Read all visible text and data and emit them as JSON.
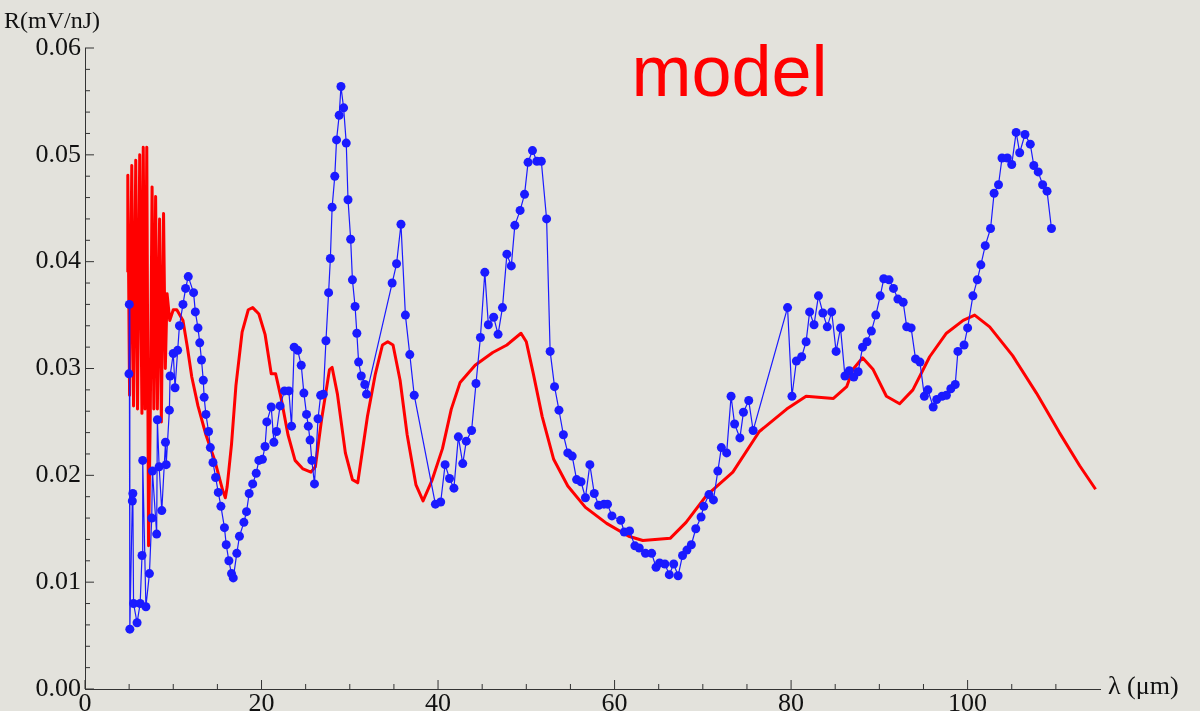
{
  "chart_data": {
    "type": "line",
    "xlabel": "λ (μm)",
    "ylabel": "R(mV/nJ)",
    "xlim": [
      0,
      115
    ],
    "ylim": [
      0,
      0.06
    ],
    "xticks": [
      0,
      {
        "value": 5,
        "label": null
      },
      {
        "value": 10,
        "label": null
      },
      {
        "value": 15,
        "label": null
      },
      20,
      {
        "value": 25,
        "label": null
      },
      {
        "value": 30,
        "label": null
      },
      {
        "value": 35,
        "label": null
      },
      40,
      {
        "value": 45,
        "label": null
      },
      {
        "value": 50,
        "label": null
      },
      {
        "value": 55,
        "label": null
      },
      60,
      {
        "value": 65,
        "label": null
      },
      {
        "value": 70,
        "label": null
      },
      {
        "value": 75,
        "label": null
      },
      80,
      {
        "value": 85,
        "label": null
      },
      {
        "value": 90,
        "label": null
      },
      {
        "value": 95,
        "label": null
      },
      100,
      {
        "value": 105,
        "label": null
      },
      {
        "value": 110,
        "label": null
      }
    ],
    "yticks": [
      {
        "value": 0,
        "label": "0.00"
      },
      {
        "value": 0.002,
        "label": null
      },
      {
        "value": 0.004,
        "label": null
      },
      {
        "value": 0.006,
        "label": null
      },
      {
        "value": 0.008,
        "label": null
      },
      0.01,
      {
        "value": 0.012,
        "label": null
      },
      {
        "value": 0.014,
        "label": null
      },
      {
        "value": 0.016,
        "label": null
      },
      {
        "value": 0.018,
        "label": null
      },
      0.02,
      {
        "value": 0.022,
        "label": null
      },
      {
        "value": 0.024,
        "label": null
      },
      {
        "value": 0.026,
        "label": null
      },
      {
        "value": 0.028,
        "label": null
      },
      0.03,
      {
        "value": 0.032,
        "label": null
      },
      {
        "value": 0.034,
        "label": null
      },
      {
        "value": 0.036,
        "label": null
      },
      {
        "value": 0.038,
        "label": null
      },
      0.04,
      {
        "value": 0.042,
        "label": null
      },
      {
        "value": 0.044,
        "label": null
      },
      {
        "value": 0.046,
        "label": null
      },
      {
        "value": 0.048,
        "label": null
      },
      0.05,
      {
        "value": 0.052,
        "label": null
      },
      {
        "value": 0.054,
        "label": null
      },
      {
        "value": 0.056,
        "label": null
      },
      {
        "value": 0.058,
        "label": null
      },
      0.06
    ],
    "grid": false,
    "legend": false,
    "series": [
      {
        "color": "#1a1aff",
        "marker": "circle",
        "line_style": "solid",
        "x": [
          4.98,
          5.02,
          5.08,
          5.36,
          5.42,
          5.5,
          5.9,
          6.25,
          6.46,
          6.54,
          6.9,
          7.3,
          7.56,
          7.64,
          8.12,
          8.2,
          8.4,
          8.7,
          9.12,
          9.2,
          9.56,
          9.64,
          10.0,
          10.2,
          10.5,
          10.7,
          11.1,
          11.4,
          11.7,
          12.3,
          12.5,
          12.8,
          13.0,
          13.2,
          13.4,
          13.5,
          13.7,
          14.0,
          14.2,
          14.5,
          14.8,
          15.1,
          15.4,
          15.8,
          16.0,
          16.3,
          16.6,
          16.8,
          17.2,
          17.5,
          18.0,
          18.3,
          18.6,
          19.0,
          19.4,
          19.7,
          20.1,
          20.4,
          20.6,
          21.1,
          21.4,
          21.7,
          22.1,
          22.6,
          23.1,
          23.4,
          23.7,
          24.1,
          24.5,
          24.8,
          25.1,
          25.3,
          25.5,
          25.7,
          26.0,
          26.4,
          26.7,
          27.0,
          27.3,
          27.6,
          27.8,
          28.0,
          28.3,
          28.5,
          28.8,
          29.0,
          29.3,
          29.6,
          29.8,
          30.1,
          30.3,
          30.6,
          30.8,
          31.0,
          31.3,
          31.7,
          31.9,
          34.8,
          35.3,
          35.8,
          36.3,
          36.8,
          37.3,
          39.7,
          40.3,
          40.8,
          41.3,
          41.8,
          42.3,
          42.8,
          43.2,
          43.8,
          44.3,
          44.8,
          45.3,
          45.7,
          46.3,
          46.8,
          47.3,
          47.8,
          48.3,
          48.7,
          49.3,
          49.8,
          50.2,
          50.7,
          51.2,
          51.7,
          52.3,
          52.7,
          53.2,
          53.7,
          54.2,
          54.7,
          55.2,
          55.7,
          56.2,
          56.7,
          57.2,
          57.7,
          58.2,
          58.8,
          59.2,
          59.7,
          60.7,
          61.1,
          61.7,
          62.3,
          62.8,
          63.5,
          64.2,
          64.7,
          65.1,
          65.7,
          66.2,
          66.7,
          67.2,
          67.7,
          68.2,
          68.7,
          69.2,
          69.8,
          70.1,
          70.7,
          71.2,
          71.7,
          72.1,
          72.7,
          73.2,
          73.6,
          74.2,
          74.6,
          75.2,
          75.7,
          79.6,
          80.1,
          80.6,
          81.2,
          81.7,
          82.1,
          82.6,
          83.1,
          83.6,
          84.1,
          84.6,
          85.1,
          85.6,
          86.1,
          86.6,
          87.1,
          87.6,
          88.1,
          88.6,
          89.1,
          89.6,
          90.1,
          90.5,
          91.1,
          91.6,
          92.1,
          92.7,
          93.1,
          93.6,
          94.1,
          94.6,
          95.1,
          95.5,
          96.1,
          96.5,
          97.1,
          97.6,
          98.1,
          98.6,
          98.9,
          99.6,
          100.0,
          100.6,
          101.1,
          101.5,
          102.0,
          102.6,
          103.0,
          103.5,
          103.9,
          104.5,
          105.0,
          105.5,
          105.9,
          106.5,
          107.1,
          107.5,
          108.0,
          108.5,
          109.0,
          109.5
        ],
        "values": [
          0.0295,
          0.036,
          0.0056,
          0.0176,
          0.0183,
          0.008,
          0.0062,
          0.008,
          0.0125,
          0.0214,
          0.0077,
          0.0108,
          0.016,
          0.0204,
          0.0145,
          0.0252,
          0.0208,
          0.0167,
          0.0231,
          0.021,
          0.0261,
          0.0293,
          0.0314,
          0.0282,
          0.0317,
          0.034,
          0.036,
          0.0375,
          0.0386,
          0.0371,
          0.0353,
          0.0338,
          0.0324,
          0.0308,
          0.0289,
          0.0273,
          0.0257,
          0.0241,
          0.0226,
          0.0212,
          0.0198,
          0.0184,
          0.0171,
          0.0151,
          0.0135,
          0.012,
          0.0108,
          0.0104,
          0.0127,
          0.0143,
          0.0156,
          0.0166,
          0.0183,
          0.0192,
          0.0202,
          0.0214,
          0.0215,
          0.0227,
          0.025,
          0.0264,
          0.0231,
          0.0241,
          0.0265,
          0.0279,
          0.0279,
          0.0246,
          0.032,
          0.0317,
          0.0303,
          0.0277,
          0.0257,
          0.0246,
          0.0233,
          0.0214,
          0.0192,
          0.0253,
          0.0275,
          0.0276,
          0.0326,
          0.0371,
          0.0403,
          0.0451,
          0.048,
          0.0514,
          0.0537,
          0.0564,
          0.0544,
          0.0511,
          0.0458,
          0.0421,
          0.0383,
          0.0358,
          0.0333,
          0.0306,
          0.0293,
          0.0285,
          0.0276,
          0.038,
          0.0398,
          0.0435,
          0.035,
          0.0313,
          0.0275,
          0.0173,
          0.0175,
          0.021,
          0.0197,
          0.0188,
          0.0236,
          0.0211,
          0.0232,
          0.0242,
          0.0286,
          0.0329,
          0.039,
          0.0341,
          0.0348,
          0.0332,
          0.0357,
          0.0407,
          0.0396,
          0.0434,
          0.0448,
          0.0463,
          0.0493,
          0.0504,
          0.0494,
          0.0494,
          0.044,
          0.0316,
          0.0283,
          0.0261,
          0.0238,
          0.0221,
          0.0218,
          0.0196,
          0.0194,
          0.0179,
          0.021,
          0.0183,
          0.0172,
          0.0173,
          0.0173,
          0.0162,
          0.0158,
          0.0147,
          0.0148,
          0.0134,
          0.0132,
          0.0127,
          0.0127,
          0.0114,
          0.0118,
          0.0117,
          0.0107,
          0.0117,
          0.0106,
          0.0125,
          0.013,
          0.0135,
          0.015,
          0.0161,
          0.0171,
          0.0182,
          0.0177,
          0.0204,
          0.0226,
          0.0221,
          0.0274,
          0.0248,
          0.0235,
          0.0259,
          0.027,
          0.0242,
          0.0357,
          0.0274,
          0.0307,
          0.0311,
          0.0325,
          0.0353,
          0.0341,
          0.0368,
          0.0352,
          0.0339,
          0.0353,
          0.0316,
          0.0338,
          0.0293,
          0.0298,
          0.0292,
          0.0297,
          0.032,
          0.0325,
          0.0335,
          0.035,
          0.0368,
          0.0384,
          0.0383,
          0.0375,
          0.0365,
          0.0362,
          0.0339,
          0.0338,
          0.0309,
          0.0306,
          0.0274,
          0.028,
          0.0264,
          0.0271,
          0.0274,
          0.0275,
          0.0281,
          0.0285,
          0.0316,
          0.0322,
          0.0338,
          0.0368,
          0.0383,
          0.0397,
          0.0415,
          0.0431,
          0.0464,
          0.0472,
          0.0497,
          0.0497,
          0.0491,
          0.0521,
          0.0502,
          0.0519,
          0.051,
          0.049,
          0.0484,
          0.0472,
          0.0466,
          0.0431
        ]
      },
      {
        "name": "model",
        "color": "#ff0000",
        "marker": "none",
        "line_style": "solid",
        "x": [
          4.8,
          4.85,
          5.05,
          5.3,
          5.5,
          5.75,
          5.95,
          6.2,
          6.45,
          6.6,
          6.8,
          7.0,
          7.2,
          7.4,
          7.6,
          7.8,
          8.0,
          8.2,
          8.45,
          8.65,
          8.9,
          9.1,
          9.3,
          9.6,
          10.0,
          10.4,
          11.1,
          11.6,
          12.1,
          12.8,
          13.7,
          14.7,
          15.6,
          15.9,
          16.1,
          16.6,
          17.1,
          17.8,
          18.5,
          19.0,
          19.7,
          20.4,
          21.1,
          21.6,
          22.2,
          23.0,
          23.8,
          24.7,
          25.6,
          26.1,
          26.8,
          27.7,
          28.0,
          28.6,
          29.5,
          30.3,
          30.9,
          32.0,
          32.9,
          33.7,
          34.3,
          34.9,
          35.7,
          36.5,
          37.5,
          38.3,
          39.3,
          40.5,
          41.5,
          42.5,
          44.2,
          46.2,
          47.8,
          49.4,
          50.0,
          50.8,
          51.8,
          53.1,
          54.7,
          56.7,
          59.1,
          61.6,
          63.2,
          66.3,
          68.1,
          70.4,
          73.4,
          76.4,
          79.5,
          81.7,
          84.8,
          86.3,
          87.0,
          88.1,
          89.3,
          90.8,
          92.3,
          93.8,
          95.7,
          97.6,
          99.5,
          100.8,
          102.5,
          105.1,
          107.8,
          110.4,
          112.7,
          114.5
        ],
        "values": [
          0.039,
          0.0481,
          0.0275,
          0.049,
          0.0265,
          0.0495,
          0.0262,
          0.05,
          0.0258,
          0.0507,
          0.0262,
          0.0507,
          0.0134,
          0.026,
          0.047,
          0.0262,
          0.0461,
          0.0262,
          0.044,
          0.025,
          0.0445,
          0.03,
          0.037,
          0.0345,
          0.0355,
          0.0355,
          0.0345,
          0.032,
          0.0292,
          0.0265,
          0.0238,
          0.0214,
          0.0186,
          0.0179,
          0.0189,
          0.0229,
          0.0284,
          0.0334,
          0.0355,
          0.0357,
          0.0351,
          0.0332,
          0.0295,
          0.0295,
          0.0273,
          0.0238,
          0.0214,
          0.0206,
          0.0203,
          0.0208,
          0.0252,
          0.0299,
          0.0301,
          0.0276,
          0.0221,
          0.0196,
          0.0193,
          0.0255,
          0.0295,
          0.0322,
          0.0325,
          0.0322,
          0.0289,
          0.0238,
          0.0191,
          0.0176,
          0.0195,
          0.0225,
          0.0262,
          0.0287,
          0.0303,
          0.0315,
          0.0322,
          0.0333,
          0.0325,
          0.0295,
          0.0255,
          0.0215,
          0.019,
          0.017,
          0.0155,
          0.0143,
          0.0139,
          0.0141,
          0.0156,
          0.0181,
          0.0203,
          0.0241,
          0.0262,
          0.0274,
          0.0272,
          0.0283,
          0.0299,
          0.031,
          0.0299,
          0.0274,
          0.0267,
          0.028,
          0.0311,
          0.0333,
          0.0345,
          0.035,
          0.0339,
          0.0312,
          0.0277,
          0.024,
          0.0209,
          0.0187
        ]
      }
    ]
  }
}
